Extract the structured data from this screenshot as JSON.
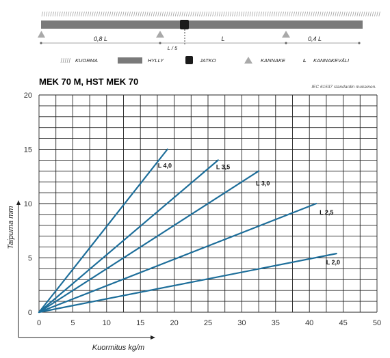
{
  "diagram": {
    "spans": [
      "0,8 L",
      "L",
      "0,4 L"
    ],
    "joint_offset_label": "L / 5",
    "legend": [
      {
        "key": "load",
        "label": "KUORMA",
        "icon": "hatch-icon"
      },
      {
        "key": "shelf",
        "label": "HYLLY",
        "icon": "bar-icon"
      },
      {
        "key": "joint",
        "label": "JATKO",
        "icon": "square-icon"
      },
      {
        "key": "bracket",
        "label": "KANNAKE",
        "icon": "triangle-icon"
      },
      {
        "key": "span",
        "label": "KANNAKEVÄLI",
        "symbol": "L",
        "icon": "letter-icon"
      }
    ]
  },
  "colors": {
    "line": "#1d6e9a",
    "shelf": "#7a7a7a",
    "support": "#a9a9a9",
    "grid": "#222222"
  },
  "chart_data": {
    "type": "line",
    "title": "MEK 70 M, HST MEK 70",
    "note": "IEC 61537 standardin mukainen.",
    "xlabel": "Kuormitus kg/m",
    "ylabel": "Taipuma mm",
    "xlim": [
      0,
      50
    ],
    "ylim": [
      0,
      20
    ],
    "xticks": [
      0,
      5,
      10,
      15,
      20,
      25,
      30,
      35,
      40,
      45,
      50
    ],
    "yticks": [
      0,
      5,
      10,
      15,
      20
    ],
    "grid": true,
    "series": [
      {
        "name": "L 4,0",
        "x": [
          0,
          19
        ],
        "y": [
          0,
          15.0
        ]
      },
      {
        "name": "L 3,5",
        "x": [
          0,
          26.5
        ],
        "y": [
          0,
          14.0
        ]
      },
      {
        "name": "L 3,0",
        "x": [
          0,
          32.5
        ],
        "y": [
          0,
          13.0
        ]
      },
      {
        "name": "L 2,5",
        "x": [
          0,
          41
        ],
        "y": [
          0,
          10.0
        ]
      },
      {
        "name": "L 2,0",
        "x": [
          0,
          44
        ],
        "y": [
          0,
          5.4
        ]
      }
    ]
  }
}
